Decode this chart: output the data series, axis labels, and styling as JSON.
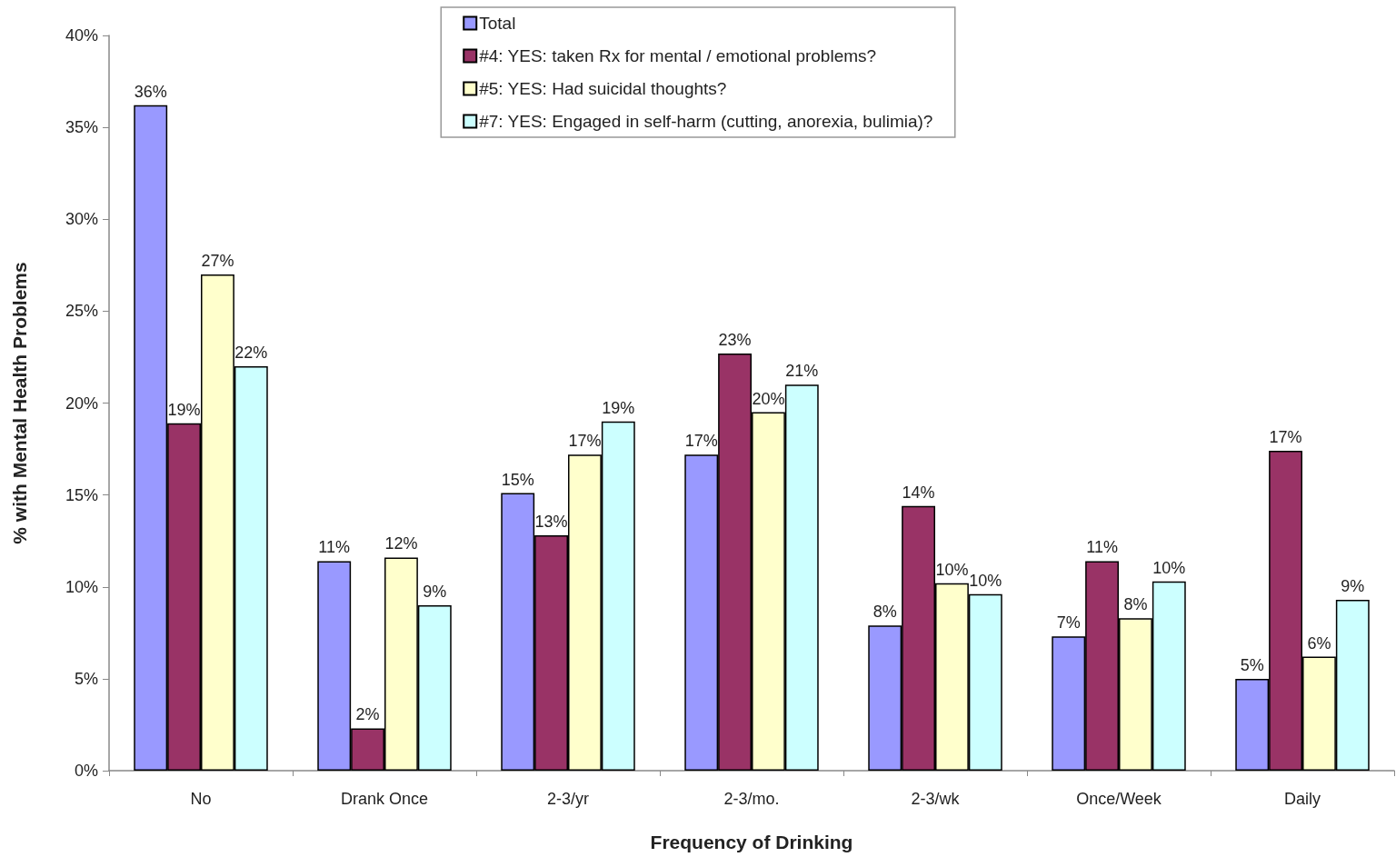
{
  "chart_data": {
    "type": "bar",
    "xlabel": "Frequency of Drinking",
    "ylabel": "% with Mental Health Problems",
    "categories": [
      "No",
      "Drank Once",
      "2-3/yr",
      "2-3/mo.",
      "2-3/wk",
      "Once/Week",
      "Daily"
    ],
    "series": [
      {
        "name": "Total",
        "color": "#9999ff",
        "values": [
          36.2,
          11.4,
          15.1,
          17.2,
          7.9,
          7.3,
          5.0
        ],
        "value_labels": [
          "36%",
          "11%",
          "15%",
          "17%",
          "8%",
          "7%",
          "5%"
        ]
      },
      {
        "name": "#4: YES: taken Rx for mental / emotional problems?",
        "color": "#993366",
        "values": [
          18.9,
          2.3,
          12.8,
          22.7,
          14.4,
          11.4,
          17.4
        ],
        "value_labels": [
          "19%",
          "2%",
          "13%",
          "23%",
          "14%",
          "11%",
          "17%"
        ]
      },
      {
        "name": "#5: YES: Had suicidal thoughts?",
        "color": "#ffffcc",
        "values": [
          27.0,
          11.6,
          17.2,
          19.5,
          10.2,
          8.3,
          6.2
        ],
        "value_labels": [
          "27%",
          "12%",
          "17%",
          "20%",
          "10%",
          "8%",
          "6%"
        ]
      },
      {
        "name": "#7: YES: Engaged in self-harm (cutting, anorexia, bulimia)?",
        "color": "#ccffff",
        "values": [
          22.0,
          9.0,
          19.0,
          21.0,
          9.6,
          10.3,
          9.3
        ],
        "value_labels": [
          "22%",
          "9%",
          "19%",
          "21%",
          "10%",
          "10%",
          "9%"
        ]
      }
    ],
    "ylim": [
      0,
      40
    ],
    "yticks": [
      {
        "value": 0,
        "label": "0%"
      },
      {
        "value": 5,
        "label": "5%"
      },
      {
        "value": 10,
        "label": "10%"
      },
      {
        "value": 15,
        "label": "15%"
      },
      {
        "value": 20,
        "label": "20%"
      },
      {
        "value": 25,
        "label": "25%"
      },
      {
        "value": 30,
        "label": "30%"
      },
      {
        "value": 35,
        "label": "35%"
      },
      {
        "value": 40,
        "label": "40%"
      }
    ],
    "legend": "top"
  }
}
